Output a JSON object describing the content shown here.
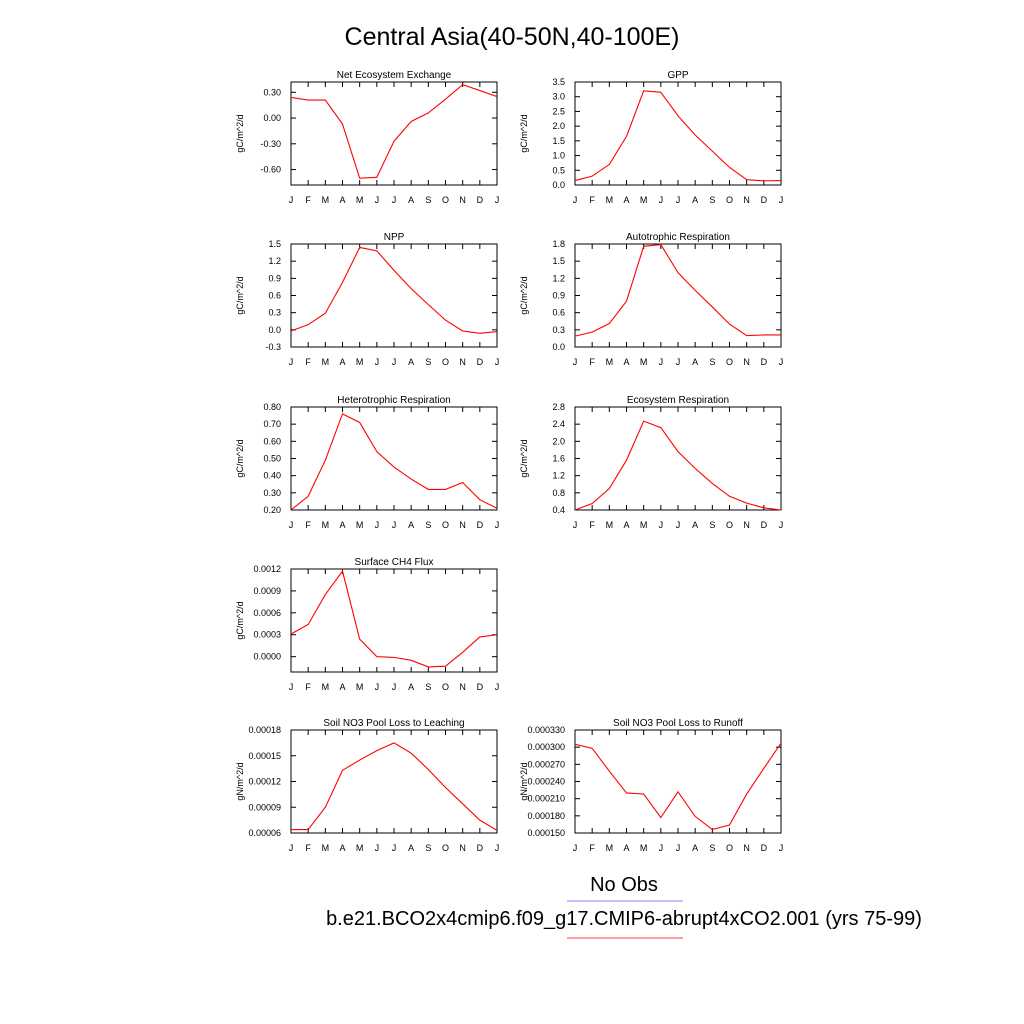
{
  "figure": {
    "title": "Central Asia(40-50N,40-100E)",
    "months": [
      "J",
      "F",
      "M",
      "A",
      "M",
      "J",
      "J",
      "A",
      "S",
      "O",
      "N",
      "D",
      "J"
    ],
    "legend": {
      "obs_label": "No Obs",
      "obs_color": "#8080ff",
      "model_label": "b.e21.BCO2x4cmip6.f09_g17.CMIP6-abrupt4xCO2.001 (yrs 75-99)",
      "model_color": "#ff4040"
    },
    "series_color": "#ff0000"
  },
  "chart_data": [
    {
      "type": "line",
      "title": "Net Ecosystem Exchange",
      "ylabel": "gC/m^2/d",
      "ylim": [
        -0.78,
        0.42
      ],
      "yticks": [
        -0.6,
        -0.3,
        0.0,
        0.3
      ],
      "ytick_labels": [
        "-0.60",
        "-0.30",
        "0.00",
        "0.30"
      ],
      "values": [
        0.24,
        0.21,
        0.21,
        -0.07,
        -0.7,
        -0.69,
        -0.27,
        -0.04,
        0.06,
        0.22,
        0.39,
        0.32,
        0.25
      ]
    },
    {
      "type": "line",
      "title": "GPP",
      "ylabel": "gC/m^2/d",
      "ylim": [
        0.0,
        3.5
      ],
      "yticks": [
        0.0,
        0.5,
        1.0,
        1.5,
        2.0,
        2.5,
        3.0,
        3.5
      ],
      "ytick_labels": [
        "0.0",
        "0.5",
        "1.0",
        "1.5",
        "2.0",
        "2.5",
        "3.0",
        "3.5"
      ],
      "values": [
        0.15,
        0.3,
        0.7,
        1.65,
        3.2,
        3.15,
        2.35,
        1.7,
        1.15,
        0.6,
        0.18,
        0.14,
        0.15
      ]
    },
    {
      "type": "line",
      "title": "NPP",
      "ylabel": "gC/m^2/d",
      "ylim": [
        -0.3,
        1.5
      ],
      "yticks": [
        -0.3,
        0.0,
        0.3,
        0.6,
        0.9,
        1.2,
        1.5
      ],
      "ytick_labels": [
        "-0.3",
        "0.0",
        "0.3",
        "0.6",
        "0.9",
        "1.2",
        "1.5"
      ],
      "values": [
        -0.02,
        0.09,
        0.29,
        0.83,
        1.44,
        1.38,
        1.04,
        0.72,
        0.44,
        0.17,
        -0.02,
        -0.06,
        -0.03
      ]
    },
    {
      "type": "line",
      "title": "Autotrophic Respiration",
      "ylabel": "gC/m^2/d",
      "ylim": [
        0.0,
        1.8
      ],
      "yticks": [
        0.0,
        0.3,
        0.6,
        0.9,
        1.2,
        1.5,
        1.8
      ],
      "ytick_labels": [
        "0.0",
        "0.3",
        "0.6",
        "0.9",
        "1.2",
        "1.5",
        "1.8"
      ],
      "values": [
        0.19,
        0.26,
        0.41,
        0.8,
        1.76,
        1.79,
        1.3,
        0.99,
        0.7,
        0.4,
        0.2,
        0.21,
        0.21
      ]
    },
    {
      "type": "line",
      "title": "Heterotrophic Respiration",
      "ylabel": "gC/m^2/d",
      "ylim": [
        0.2,
        0.8
      ],
      "yticks": [
        0.2,
        0.3,
        0.4,
        0.5,
        0.6,
        0.7,
        0.8
      ],
      "ytick_labels": [
        "0.20",
        "0.30",
        "0.40",
        "0.50",
        "0.60",
        "0.70",
        "0.80"
      ],
      "values": [
        0.2,
        0.28,
        0.49,
        0.76,
        0.71,
        0.54,
        0.45,
        0.38,
        0.32,
        0.32,
        0.36,
        0.26,
        0.21
      ]
    },
    {
      "type": "line",
      "title": "Ecosystem Respiration",
      "ylabel": "gC/m^2/d",
      "ylim": [
        0.4,
        2.8
      ],
      "yticks": [
        0.4,
        0.8,
        1.2,
        1.6,
        2.0,
        2.4,
        2.8
      ],
      "ytick_labels": [
        "0.4",
        "0.8",
        "1.2",
        "1.6",
        "2.0",
        "2.4",
        "2.8"
      ],
      "values": [
        0.4,
        0.55,
        0.9,
        1.56,
        2.47,
        2.32,
        1.76,
        1.37,
        1.02,
        0.72,
        0.56,
        0.45,
        0.4
      ]
    },
    {
      "type": "line",
      "title": "Surface CH4 Flux",
      "ylabel": "gC/m^2/d",
      "ylim": [
        -0.00021,
        0.0012
      ],
      "yticks": [
        0.0,
        0.0003,
        0.0006,
        0.0009,
        0.0012
      ],
      "ytick_labels": [
        "0.0000",
        "0.0003",
        "0.0006",
        "0.0009",
        "0.0012"
      ],
      "values": [
        0.00031,
        0.00044,
        0.00085,
        0.00117,
        0.00024,
        0.0,
        -1e-05,
        -5e-05,
        -0.00014,
        -0.00013,
        6e-05,
        0.00027,
        0.0003
      ]
    },
    {
      "type": "line",
      "title": "Soil NO3 Pool Loss to Leaching",
      "ylabel": "gN/m^2/d",
      "ylim": [
        6e-05,
        0.00018
      ],
      "yticks": [
        6e-05,
        9e-05,
        0.00012,
        0.00015,
        0.00018
      ],
      "ytick_labels": [
        "0.00006",
        "0.00009",
        "0.00012",
        "0.00015",
        "0.00018"
      ],
      "values": [
        6.4e-05,
        6.4e-05,
        9e-05,
        0.000133,
        0.000145,
        0.000156,
        0.000165,
        0.000153,
        0.000134,
        0.000113,
        9.4e-05,
        7.5e-05,
        6.3e-05
      ]
    },
    {
      "type": "line",
      "title": "Soil NO3 Pool Loss to Runoff",
      "ylabel": "gN/m^2/d",
      "ylim": [
        0.00015,
        0.00033
      ],
      "yticks": [
        0.00015,
        0.00018,
        0.00021,
        0.00024,
        0.00027,
        0.0003,
        0.00033
      ],
      "ytick_labels": [
        "0.000150",
        "0.000180",
        "0.000210",
        "0.000240",
        "0.000270",
        "0.000300",
        "0.000330"
      ],
      "values": [
        0.000305,
        0.000298,
        0.000258,
        0.00022,
        0.000218,
        0.000177,
        0.000222,
        0.000179,
        0.000156,
        0.000164,
        0.000218,
        0.000263,
        0.000307
      ]
    }
  ]
}
